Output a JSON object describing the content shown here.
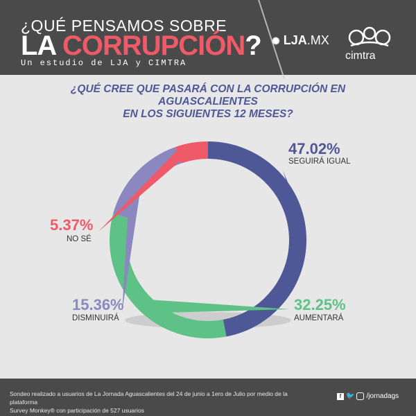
{
  "header": {
    "title_line1": "¿QUÉ PENSAMOS SOBRE",
    "title_line2_prefix": "LA ",
    "title_line2_highlight": "CORRUPCIÓN",
    "title_line2_suffix": "?",
    "subtitle": "Un estudio de LJA y CIMTRA",
    "logo_lja_bold": "LJA",
    "logo_lja_light": ".MX",
    "logo_cimtra": "cimtra"
  },
  "question": {
    "line1": "¿QUÉ CREE QUE PASARÁ CON LA CORRUPCIÓN EN AGUASCALIENTES",
    "line2": "EN LOS SIGUIENTES 12 MESES?"
  },
  "chart_data": {
    "type": "pie",
    "title": "¿QUÉ CREE QUE PASARÁ CON LA CORRUPCIÓN EN AGUASCALIENTES EN LOS SIGUIENTES 12 MESES?",
    "categories": [
      "SEGUIRÁ IGUAL",
      "AUMENTARÁ",
      "DISMINUIRÁ",
      "NO SÉ"
    ],
    "values": [
      47.02,
      32.25,
      15.36,
      5.37
    ],
    "labels": [
      "47.02%",
      "32.25%",
      "15.36%",
      "5.37%"
    ],
    "colors": [
      "#4e5897",
      "#5ec185",
      "#8b87bf",
      "#ee5a68"
    ],
    "donut": true
  },
  "footer": {
    "text_line1": "Sondeo realizado a usuarios de La Jornada Aguascalientes del 24 de junio a 1ero de Julio por medio de la plataforma",
    "text_line2": "Survey Monkey® con participación de 527 usuarios",
    "handle": "/jornadags"
  }
}
